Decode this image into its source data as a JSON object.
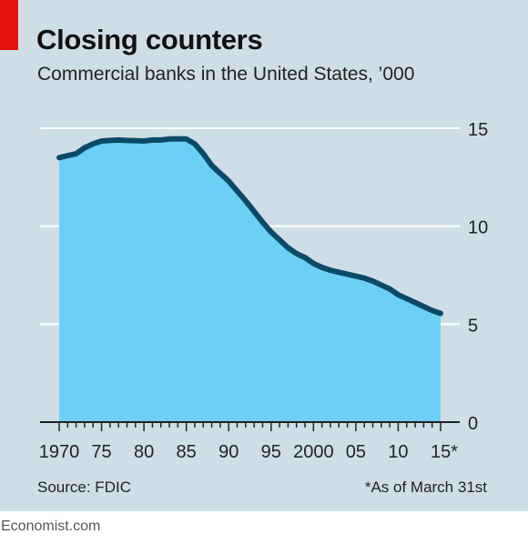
{
  "colors": {
    "accent": "#e3120b",
    "area": "#6ccff6",
    "line": "#0a4a68",
    "background": "#cfdde6"
  },
  "chart_data": {
    "type": "area",
    "title": "Closing counters",
    "subtitle": "Commercial banks in the United States, ’000",
    "x": [
      1970,
      1971,
      1972,
      1973,
      1974,
      1975,
      1976,
      1977,
      1978,
      1979,
      1980,
      1981,
      1982,
      1983,
      1984,
      1985,
      1986,
      1987,
      1988,
      1989,
      1990,
      1991,
      1992,
      1993,
      1994,
      1995,
      1996,
      1997,
      1998,
      1999,
      2000,
      2001,
      2002,
      2003,
      2004,
      2005,
      2006,
      2007,
      2008,
      2009,
      2010,
      2011,
      2012,
      2013,
      2014,
      2015
    ],
    "y": [
      13.5,
      13.6,
      13.7,
      14.0,
      14.2,
      14.35,
      14.38,
      14.4,
      14.38,
      14.37,
      14.35,
      14.4,
      14.4,
      14.45,
      14.46,
      14.45,
      14.2,
      13.7,
      13.1,
      12.7,
      12.3,
      11.8,
      11.3,
      10.75,
      10.2,
      9.7,
      9.3,
      8.9,
      8.6,
      8.4,
      8.1,
      7.9,
      7.75,
      7.65,
      7.55,
      7.45,
      7.35,
      7.2,
      7.0,
      6.8,
      6.5,
      6.3,
      6.1,
      5.9,
      5.7,
      5.55
    ],
    "ylim": [
      0,
      15
    ],
    "yticks": [
      "0",
      "5",
      "10",
      "15"
    ],
    "ytick_values": [
      0,
      5,
      10,
      15
    ],
    "xlim": [
      1970,
      2015
    ],
    "xtick_labels": [
      "1970",
      "75",
      "80",
      "85",
      "90",
      "95",
      "2000",
      "05",
      "10",
      "15*"
    ],
    "xtick_values": [
      1970,
      1975,
      1980,
      1985,
      1990,
      1995,
      2000,
      2005,
      2010,
      2015
    ],
    "grid": true
  },
  "footer": {
    "source": "Source: FDIC",
    "footnote": "*As of March 31st",
    "brand": "Economist.com"
  }
}
